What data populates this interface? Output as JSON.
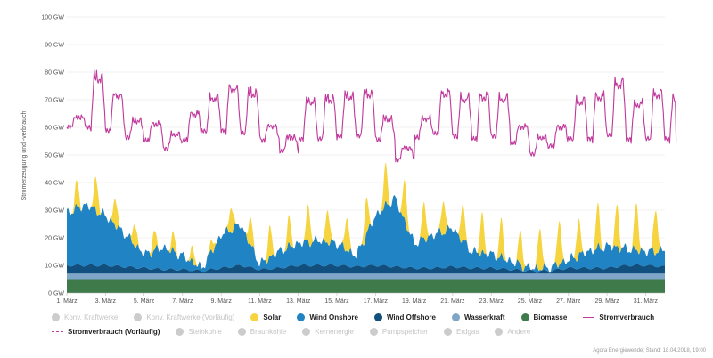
{
  "chart_data": {
    "type": "area",
    "ylabel": "Stromerzeugung und -verbrauch",
    "ylim": [
      0,
      100
    ],
    "yticks": [
      "0 GW",
      "10 GW",
      "20 GW",
      "30 GW",
      "40 GW",
      "50 GW",
      "60 GW",
      "70 GW",
      "80 GW",
      "90 GW",
      "100 GW"
    ],
    "x_range_days": [
      1,
      32
    ],
    "xticks": [
      {
        "day": 1,
        "label": "1. März"
      },
      {
        "day": 3,
        "label": "3. März"
      },
      {
        "day": 5,
        "label": "5. März"
      },
      {
        "day": 7,
        "label": "7. März"
      },
      {
        "day": 9,
        "label": "9. März"
      },
      {
        "day": 11,
        "label": "11. März"
      },
      {
        "day": 13,
        "label": "13. März"
      },
      {
        "day": 15,
        "label": "15. März"
      },
      {
        "day": 17,
        "label": "17. März"
      },
      {
        "day": 19,
        "label": "19. März"
      },
      {
        "day": 21,
        "label": "21. März"
      },
      {
        "day": 23,
        "label": "23. März"
      },
      {
        "day": 25,
        "label": "25. März"
      },
      {
        "day": 27,
        "label": "27. März"
      },
      {
        "day": 29,
        "label": "29. März"
      },
      {
        "day": 31,
        "label": "31. März"
      }
    ],
    "grid": true,
    "series": [
      {
        "name": "Biomasse",
        "color": "#3f7a4a",
        "kind": "area",
        "values": [
          5,
          5,
          5,
          5,
          5,
          5,
          5,
          5,
          5,
          5,
          5,
          5,
          5,
          5,
          5,
          5,
          5,
          5,
          5,
          5,
          5,
          5,
          5,
          5,
          5,
          5,
          5,
          5,
          5,
          5,
          5,
          5
        ]
      },
      {
        "name": "Wasserkraft",
        "color": "#7fa6c9",
        "kind": "area",
        "values": [
          2,
          2,
          2,
          2,
          2,
          2,
          2,
          2,
          2,
          2,
          2,
          2,
          2,
          2,
          2,
          2,
          2,
          2,
          2,
          2,
          2,
          2,
          2,
          2,
          2,
          2,
          2,
          2,
          2,
          2,
          2,
          2
        ]
      },
      {
        "name": "Wind Offshore",
        "color": "#114f7e",
        "kind": "area",
        "values": [
          3,
          3,
          3,
          2.5,
          2,
          1.5,
          1.5,
          1,
          2,
          3,
          1.5,
          2,
          3,
          3,
          3,
          2.5,
          3,
          2.5,
          2,
          2,
          2.5,
          2,
          2,
          1.5,
          1,
          1,
          2,
          2,
          2,
          3,
          3,
          2.5
        ]
      },
      {
        "name": "Wind Onshore",
        "color": "#1f83c4",
        "kind": "area",
        "values": [
          19,
          22,
          18,
          12,
          5,
          8,
          5,
          1,
          12,
          15,
          2,
          6,
          8,
          9,
          8,
          4,
          18,
          25,
          9,
          12,
          14,
          6,
          5,
          3,
          1,
          1,
          3,
          6,
          8,
          6,
          5,
          6
        ]
      },
      {
        "name": "Solar",
        "color": "#f6d43f",
        "kind": "peaks",
        "values": [
          9,
          12,
          10,
          8,
          7,
          6,
          5,
          4,
          9,
          10,
          11,
          10,
          13,
          12,
          12,
          13,
          14,
          14,
          13,
          12,
          13,
          14,
          13,
          12,
          15,
          16,
          13,
          15,
          15,
          17,
          16,
          16
        ]
      },
      {
        "name": "Stromverbrauch",
        "color": "#c0389b",
        "kind": "line",
        "day_peak": [
          64,
          80,
          73,
          63,
          62,
          58,
          66,
          72,
          76,
          74,
          61,
          57,
          71,
          72,
          73,
          74,
          64,
          53,
          64,
          74,
          72,
          73,
          72,
          61,
          57,
          61,
          71,
          73,
          78,
          70,
          74,
          72
        ],
        "night_low": [
          60,
          59,
          58,
          56,
          55,
          52,
          55,
          58,
          58,
          57,
          55,
          51,
          55,
          55,
          56,
          56,
          55,
          48,
          56,
          57,
          56,
          55,
          56,
          54,
          50,
          53,
          55,
          55,
          56,
          55,
          55,
          55
        ],
        "last_value": 55
      }
    ]
  },
  "legend": {
    "row1": [
      {
        "label": "Konv. Kraftwerke",
        "color": "#cccccc",
        "active": false,
        "shape": "dot"
      },
      {
        "label": "Konv. Kraftwerke (Vorläufig)",
        "color": "#cccccc",
        "active": false,
        "shape": "dot"
      },
      {
        "label": "Solar",
        "color": "#f6d43f",
        "active": true,
        "shape": "dot"
      },
      {
        "label": "Wind Onshore",
        "color": "#1f83c4",
        "active": true,
        "shape": "dot"
      },
      {
        "label": "Wind Offshore",
        "color": "#114f7e",
        "active": true,
        "shape": "dot"
      },
      {
        "label": "Wasserkraft",
        "color": "#7fa6c9",
        "active": true,
        "shape": "dot"
      },
      {
        "label": "Biomasse",
        "color": "#3f7a4a",
        "active": true,
        "shape": "dot"
      },
      {
        "label": "Stromverbrauch",
        "color": "#c0389b",
        "active": true,
        "shape": "line"
      }
    ],
    "row2": [
      {
        "label": "Stromverbrauch (Vorläufig)",
        "color": "#c0389b",
        "active": true,
        "shape": "dashed"
      },
      {
        "label": "Steinkohle",
        "color": "#cccccc",
        "active": false,
        "shape": "dot"
      },
      {
        "label": "Braunkohle",
        "color": "#cccccc",
        "active": false,
        "shape": "dot"
      },
      {
        "label": "Kernenergie",
        "color": "#cccccc",
        "active": false,
        "shape": "dot"
      },
      {
        "label": "Pumpspeicher",
        "color": "#cccccc",
        "active": false,
        "shape": "dot"
      },
      {
        "label": "Erdgas",
        "color": "#cccccc",
        "active": false,
        "shape": "dot"
      },
      {
        "label": "Andere",
        "color": "#cccccc",
        "active": false,
        "shape": "dot"
      }
    ]
  },
  "footer": "Agora Energiewende; Stand: 18.04.2018, 19:00"
}
